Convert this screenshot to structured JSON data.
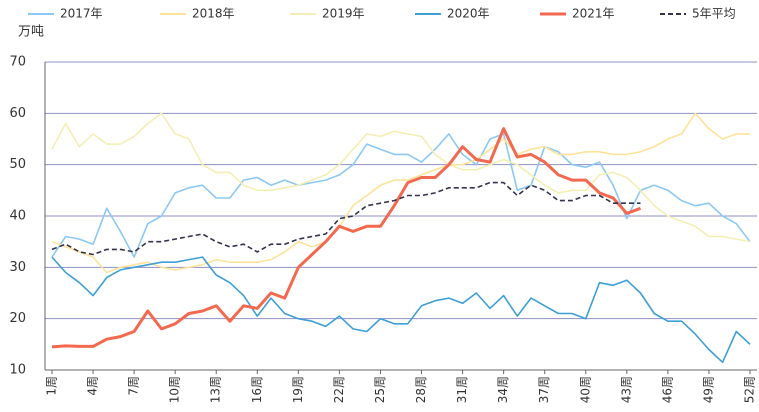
{
  "chart_data": {
    "type": "line",
    "y_label": "万吨",
    "categories": [
      "1周",
      null,
      null,
      "4周",
      null,
      null,
      "7周",
      null,
      null,
      "10周",
      null,
      null,
      "13周",
      null,
      null,
      "16周",
      null,
      null,
      "19周",
      null,
      null,
      "22周",
      null,
      null,
      "25周",
      null,
      null,
      "28周",
      null,
      null,
      "31周",
      null,
      null,
      "34周",
      null,
      null,
      "37周",
      null,
      null,
      "40周",
      null,
      null,
      "43周",
      null,
      null,
      "46周",
      null,
      null,
      "49周",
      null,
      null,
      "52周"
    ],
    "ylim": [
      10,
      70
    ],
    "yticks": [
      10,
      20,
      30,
      40,
      50,
      60,
      70
    ],
    "grid": true,
    "legend": "top",
    "series": [
      {
        "name": "2017年",
        "color": "#8cc8f2",
        "values": [
          32,
          36,
          35.5,
          34.5,
          41.5,
          37,
          32,
          38.5,
          40,
          44.5,
          45.5,
          46,
          43.5,
          43.5,
          47,
          47.5,
          46,
          47,
          46,
          46.5,
          47,
          48,
          50,
          54,
          53,
          52,
          52,
          50.5,
          53,
          56,
          52,
          50,
          55,
          56,
          45,
          46,
          53.5,
          52.5,
          50,
          49.5,
          50.5,
          46,
          39.5,
          45,
          46,
          45,
          43,
          42,
          42.5,
          40,
          38.5,
          35
        ]
      },
      {
        "name": "2018年",
        "color": "#fde39a",
        "values": [
          35,
          34,
          33,
          32,
          29,
          30,
          30.5,
          31,
          30,
          29.5,
          30,
          30.5,
          31.5,
          31,
          31,
          31,
          31.5,
          33,
          35,
          34,
          35,
          38,
          42,
          44,
          46,
          47,
          47,
          48,
          49,
          50,
          50,
          51,
          53,
          55,
          52,
          53,
          53.5,
          52,
          52,
          52.5,
          52.5,
          52,
          52,
          52.5,
          53.5,
          55,
          56,
          60,
          57,
          55,
          56,
          56
        ]
      },
      {
        "name": "2019年",
        "color": "#f3efb4",
        "values": [
          53,
          58,
          53.5,
          56,
          54,
          54,
          55.5,
          58,
          60,
          56,
          55,
          50,
          48.5,
          48.5,
          46,
          45,
          45,
          45.5,
          46,
          47,
          48,
          50,
          53,
          56,
          55.5,
          56.5,
          56,
          55.5,
          52,
          50,
          49,
          49,
          50,
          51,
          50,
          48,
          46,
          44.5,
          45,
          45,
          48,
          48.5,
          47.5,
          45,
          42,
          40,
          39,
          38,
          36,
          36,
          35.5,
          35
        ]
      },
      {
        "name": "2020年",
        "color": "#3d9fd6",
        "values": [
          32,
          29,
          27,
          24.5,
          28,
          29.5,
          30,
          30.5,
          31,
          31,
          31.5,
          32,
          28.5,
          27,
          24.5,
          20.5,
          24,
          21,
          20,
          19.5,
          18.5,
          20.5,
          18,
          17.5,
          20,
          19,
          19,
          22.5,
          23.5,
          24,
          23,
          25,
          22,
          24.5,
          20.5,
          24,
          22.5,
          21,
          21,
          20,
          27,
          26.5,
          27.5,
          25,
          21,
          19.5,
          19.5,
          17,
          14,
          11.5,
          17.5,
          15
        ]
      },
      {
        "name": "2021年",
        "color": "#f2694f",
        "values": [
          14.5,
          14.7,
          14.6,
          14.6,
          16,
          16.5,
          17.5,
          21.5,
          18,
          19,
          21,
          21.5,
          22.5,
          19.5,
          22.5,
          22,
          25,
          24,
          30,
          32.5,
          35,
          38,
          37,
          38,
          38,
          42,
          46.5,
          47.5,
          47.5,
          50,
          53.5,
          51,
          50.5,
          57,
          51.5,
          52,
          50.5,
          48,
          47,
          47,
          44.5,
          43.5,
          40.5,
          41.5,
          null,
          null,
          null,
          null,
          null,
          null,
          null,
          null
        ]
      },
      {
        "name": "5年平均",
        "color": "#33334d",
        "dash": true,
        "values": [
          33.5,
          34.5,
          33,
          32.5,
          33.5,
          33.5,
          33,
          35,
          35,
          35.5,
          36,
          36.5,
          35,
          34,
          34.5,
          33,
          34.5,
          34.5,
          35.5,
          36,
          36.5,
          39.5,
          40,
          42,
          42.5,
          43,
          44,
          44,
          44.5,
          45.5,
          45.5,
          45.5,
          46.5,
          46.5,
          44,
          46,
          45,
          43,
          43,
          44,
          44,
          42.5,
          42.5,
          42.5,
          null,
          null,
          null,
          null,
          null,
          null,
          null,
          null
        ]
      }
    ]
  }
}
